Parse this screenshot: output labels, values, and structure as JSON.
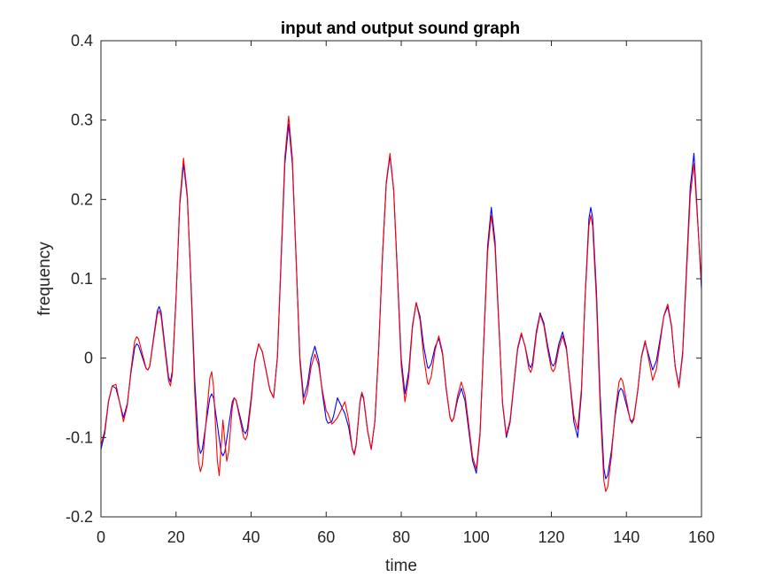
{
  "chart_data": {
    "type": "line",
    "title": "input and output sound graph",
    "xlabel": "time",
    "ylabel": "frequency",
    "xlim": [
      0,
      160
    ],
    "ylim": [
      -0.2,
      0.4
    ],
    "xticks": [
      0,
      20,
      40,
      60,
      80,
      100,
      120,
      140,
      160
    ],
    "xtick_labels": [
      "0",
      "20",
      "40",
      "60",
      "80",
      "100",
      "120",
      "140",
      "160"
    ],
    "yticks": [
      -0.2,
      -0.1,
      0,
      0.1,
      0.2,
      0.3,
      0.4
    ],
    "ytick_labels": [
      "-0.2",
      "-0.1",
      "0",
      "0.1",
      "0.2",
      "0.3",
      "0.4"
    ],
    "grid": false,
    "legend": null,
    "series": [
      {
        "name": "input",
        "color": "#0000ff",
        "points": [
          [
            0,
            -0.115
          ],
          [
            3,
            -0.035
          ],
          [
            4,
            -0.038
          ],
          [
            6,
            -0.075
          ],
          [
            9.5,
            0.018
          ],
          [
            12.5,
            -0.015
          ],
          [
            15.5,
            0.065
          ],
          [
            18.5,
            -0.03
          ],
          [
            22,
            0.245
          ],
          [
            26.5,
            -0.12
          ],
          [
            29.5,
            -0.045
          ],
          [
            32.5,
            -0.123
          ],
          [
            35.5,
            -0.05
          ],
          [
            38.5,
            -0.095
          ],
          [
            42,
            0.018
          ],
          [
            46,
            -0.05
          ],
          [
            50,
            0.295
          ],
          [
            54,
            -0.05
          ],
          [
            57,
            0.015
          ],
          [
            60.5,
            -0.082
          ],
          [
            61.5,
            -0.08
          ],
          [
            63,
            -0.05
          ],
          [
            65,
            -0.07
          ],
          [
            67.5,
            -0.12
          ],
          [
            69.5,
            -0.045
          ],
          [
            72,
            -0.115
          ],
          [
            77,
            0.255
          ],
          [
            81,
            -0.045
          ],
          [
            84,
            0.07
          ],
          [
            87.3,
            -0.013
          ],
          [
            90,
            0.025
          ],
          [
            93.5,
            -0.08
          ],
          [
            96,
            -0.038
          ],
          [
            100,
            -0.145
          ],
          [
            104,
            0.19
          ],
          [
            108,
            -0.1
          ],
          [
            112,
            0.03
          ],
          [
            114.5,
            -0.012
          ],
          [
            117,
            0.057
          ],
          [
            120.5,
            -0.01
          ],
          [
            123,
            0.033
          ],
          [
            127,
            -0.1
          ],
          [
            130.5,
            0.19
          ],
          [
            134.5,
            -0.152
          ],
          [
            138.5,
            -0.038
          ],
          [
            141.5,
            -0.08
          ],
          [
            145,
            0.02
          ],
          [
            147,
            -0.015
          ],
          [
            151,
            0.065
          ],
          [
            154,
            -0.035
          ],
          [
            158,
            0.258
          ],
          [
            160,
            0.087
          ]
        ]
      },
      {
        "name": "output",
        "color": "#ff0000",
        "points": [
          [
            0,
            -0.11
          ],
          [
            3,
            -0.035
          ],
          [
            4,
            -0.033
          ],
          [
            6,
            -0.08
          ],
          [
            9.5,
            0.027
          ],
          [
            12.5,
            -0.015
          ],
          [
            15.5,
            0.06
          ],
          [
            18.5,
            -0.035
          ],
          [
            22,
            0.252
          ],
          [
            26.5,
            -0.143
          ],
          [
            29.5,
            -0.017
          ],
          [
            31.5,
            -0.148
          ],
          [
            32.5,
            -0.078
          ],
          [
            33.5,
            -0.13
          ],
          [
            35.5,
            -0.05
          ],
          [
            38.5,
            -0.103
          ],
          [
            42,
            0.018
          ],
          [
            46,
            -0.05
          ],
          [
            50,
            0.305
          ],
          [
            54,
            -0.058
          ],
          [
            57,
            0.005
          ],
          [
            60.5,
            -0.07
          ],
          [
            61.5,
            -0.083
          ],
          [
            63,
            -0.075
          ],
          [
            65,
            -0.055
          ],
          [
            67.5,
            -0.122
          ],
          [
            69.5,
            -0.043
          ],
          [
            72,
            -0.115
          ],
          [
            77,
            0.258
          ],
          [
            81,
            -0.055
          ],
          [
            84,
            0.07
          ],
          [
            87.3,
            -0.033
          ],
          [
            90,
            0.028
          ],
          [
            93.5,
            -0.08
          ],
          [
            96,
            -0.03
          ],
          [
            100,
            -0.14
          ],
          [
            104,
            0.18
          ],
          [
            108,
            -0.097
          ],
          [
            112,
            0.032
          ],
          [
            114.5,
            -0.018
          ],
          [
            117,
            0.055
          ],
          [
            120.5,
            -0.017
          ],
          [
            123,
            0.028
          ],
          [
            127,
            -0.09
          ],
          [
            130.5,
            0.18
          ],
          [
            134.5,
            -0.168
          ],
          [
            138.5,
            -0.025
          ],
          [
            141.5,
            -0.082
          ],
          [
            145,
            0.022
          ],
          [
            147,
            -0.028
          ],
          [
            151,
            0.068
          ],
          [
            154,
            -0.037
          ],
          [
            158,
            0.245
          ],
          [
            160,
            0.095
          ]
        ]
      }
    ]
  }
}
